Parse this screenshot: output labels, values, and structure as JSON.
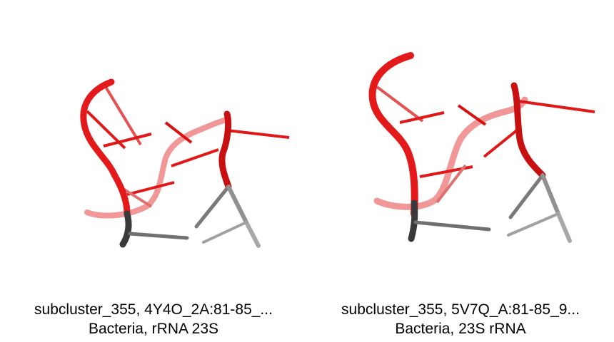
{
  "panels": [
    {
      "title": "subcluster_355, 4Y4O_2A:81-85_...",
      "subtitle": "Bacteria, rRNA 23S"
    },
    {
      "title": "subcluster_355, 5V7Q_A:81-85_9...",
      "subtitle": "Bacteria, 23S rRNA"
    }
  ],
  "colors": {
    "backbone_red": "#e41a1a",
    "backbone_dark": "#2a2a2a",
    "stick_gray": "#8c8c8c",
    "background": "#ffffff"
  }
}
